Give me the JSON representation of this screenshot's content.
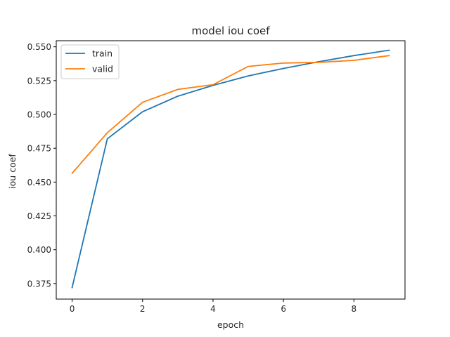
{
  "chart_data": {
    "type": "line",
    "title": "model iou coef",
    "xlabel": "epoch",
    "ylabel": "iou coef",
    "x": [
      0,
      1,
      2,
      3,
      4,
      5,
      6,
      7,
      8,
      9
    ],
    "xlim": [
      -0.45,
      9.45
    ],
    "ylim": [
      0.3635,
      0.5545
    ],
    "xticks": [
      0,
      2,
      4,
      6,
      8
    ],
    "yticks": [
      0.375,
      0.4,
      0.425,
      0.45,
      0.475,
      0.5,
      0.525,
      0.55
    ],
    "xtick_labels": [
      "0",
      "2",
      "4",
      "6",
      "8"
    ],
    "ytick_labels": [
      "0.375",
      "0.400",
      "0.425",
      "0.450",
      "0.475",
      "0.500",
      "0.525",
      "0.550"
    ],
    "grid": false,
    "legend_position": "upper-left",
    "series": [
      {
        "name": "train",
        "color": "#1f77b4",
        "values": [
          0.372,
          0.482,
          0.502,
          0.5135,
          0.5215,
          0.5285,
          0.534,
          0.539,
          0.5435,
          0.5475
        ]
      },
      {
        "name": "valid",
        "color": "#ff7f0e",
        "values": [
          0.4565,
          0.4865,
          0.509,
          0.5185,
          0.522,
          0.5355,
          0.538,
          0.5385,
          0.54,
          0.5435
        ]
      }
    ]
  }
}
